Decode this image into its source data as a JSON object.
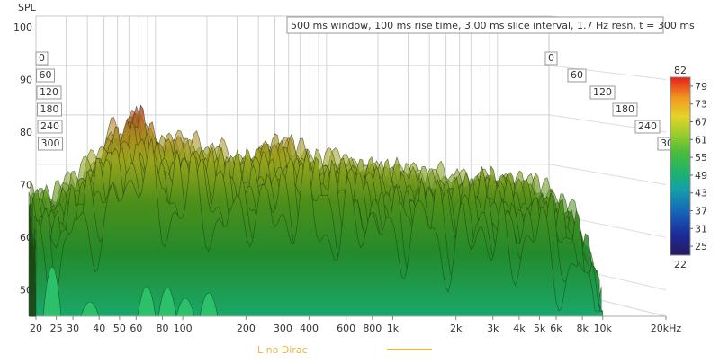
{
  "chart_data": {
    "type": "waterfall",
    "title": "500 ms window, 100 ms rise time, 3.00 ms slice interval, 1.7 Hz resn, t = 300 ms",
    "ylabel": "SPL",
    "xlabel": "",
    "x_scale": "log",
    "xlim": [
      20,
      20000
    ],
    "ylim": [
      45,
      100
    ],
    "x_ticks": [
      {
        "v": 20,
        "label": "20"
      },
      {
        "v": 25,
        "label": "25"
      },
      {
        "v": 30,
        "label": "30"
      },
      {
        "v": 40,
        "label": "40"
      },
      {
        "v": 50,
        "label": "50"
      },
      {
        "v": 60,
        "label": "60"
      },
      {
        "v": 80,
        "label": "80"
      },
      {
        "v": 100,
        "label": "100"
      },
      {
        "v": 200,
        "label": "200"
      },
      {
        "v": 300,
        "label": "300"
      },
      {
        "v": 400,
        "label": "400"
      },
      {
        "v": 600,
        "label": "600"
      },
      {
        "v": 800,
        "label": "800"
      },
      {
        "v": 1000,
        "label": "1k"
      },
      {
        "v": 2000,
        "label": "2k"
      },
      {
        "v": 3000,
        "label": "3k"
      },
      {
        "v": 4000,
        "label": "4k"
      },
      {
        "v": 5000,
        "label": "5k"
      },
      {
        "v": 6000,
        "label": "6k"
      },
      {
        "v": 8000,
        "label": "8k"
      },
      {
        "v": 10000,
        "label": "10k"
      },
      {
        "v": 20000,
        "label": "20kHz"
      }
    ],
    "y_ticks": [
      50,
      60,
      70,
      80,
      90,
      100
    ],
    "time_ticks": [
      "0",
      "60",
      "120",
      "180",
      "240",
      "300"
    ],
    "colorbar": {
      "min": 22,
      "max": 82,
      "ticks": [
        22,
        25,
        31,
        37,
        43,
        49,
        55,
        61,
        67,
        73,
        79,
        82
      ]
    },
    "legend": {
      "label": "L no Dirac",
      "color": "#e8b63a",
      "position": "bottom-center"
    },
    "grid": true,
    "envelope": [
      {
        "f": 20,
        "spl": 71
      },
      {
        "f": 25,
        "spl": 69
      },
      {
        "f": 30,
        "spl": 72
      },
      {
        "f": 35,
        "spl": 74
      },
      {
        "f": 40,
        "spl": 77
      },
      {
        "f": 45,
        "spl": 79
      },
      {
        "f": 50,
        "spl": 83
      },
      {
        "f": 55,
        "spl": 82
      },
      {
        "f": 60,
        "spl": 85
      },
      {
        "f": 65,
        "spl": 86
      },
      {
        "f": 70,
        "spl": 84
      },
      {
        "f": 80,
        "spl": 80
      },
      {
        "f": 100,
        "spl": 80
      },
      {
        "f": 130,
        "spl": 79
      },
      {
        "f": 160,
        "spl": 78
      },
      {
        "f": 200,
        "spl": 77
      },
      {
        "f": 250,
        "spl": 79
      },
      {
        "f": 300,
        "spl": 80
      },
      {
        "f": 350,
        "spl": 79
      },
      {
        "f": 400,
        "spl": 78
      },
      {
        "f": 500,
        "spl": 76
      },
      {
        "f": 600,
        "spl": 77
      },
      {
        "f": 800,
        "spl": 76
      },
      {
        "f": 1000,
        "spl": 75
      },
      {
        "f": 1500,
        "spl": 74
      },
      {
        "f": 2000,
        "spl": 73
      },
      {
        "f": 3000,
        "spl": 74
      },
      {
        "f": 4000,
        "spl": 73
      },
      {
        "f": 5000,
        "spl": 72
      },
      {
        "f": 6000,
        "spl": 70
      },
      {
        "f": 8000,
        "spl": 66
      },
      {
        "f": 9000,
        "spl": 60
      },
      {
        "f": 10000,
        "spl": 55
      }
    ]
  }
}
